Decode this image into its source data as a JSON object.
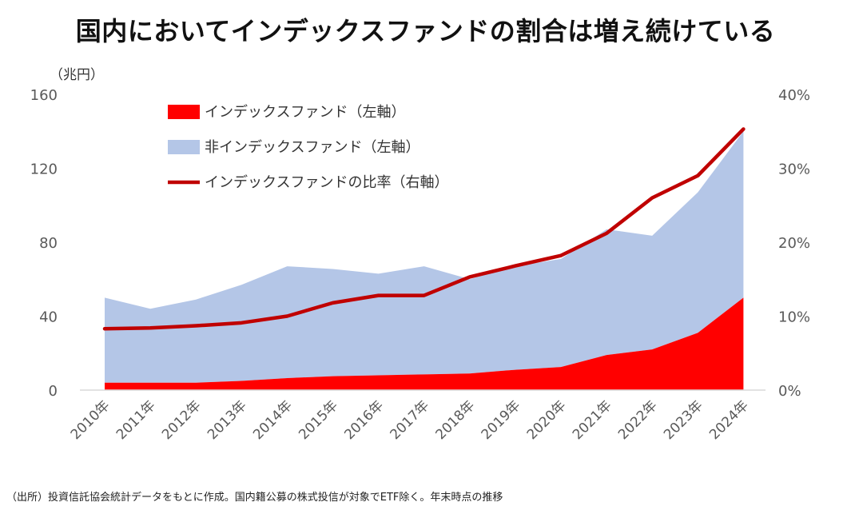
{
  "title": "国内においてインデックスファンドの割合は増え続けている",
  "source_note": "（出所）投資信託協会統計データをもとに作成。国内籍公募の株式投信が対象でETF除く。年末時点の推移",
  "colors": {
    "index_fund": "#ff0000",
    "non_index_fund": "#b4c6e7",
    "ratio_line": "#c00000",
    "axis_text": "#595959",
    "baseline": "#d9d9d9"
  },
  "chart_data": {
    "type": "area",
    "title": "国内においてインデックスファンドの割合は増え続けている",
    "left_axis_unit": "（兆円）",
    "categories": [
      "2010年",
      "2011年",
      "2012年",
      "2013年",
      "2014年",
      "2015年",
      "2016年",
      "2017年",
      "2018年",
      "2019年",
      "2020年",
      "2021年",
      "2022年",
      "2023年",
      "2024年"
    ],
    "left_ylim": [
      0,
      160
    ],
    "left_yticks": [
      "0",
      "40",
      "80",
      "120",
      "160"
    ],
    "right_ylim": [
      0,
      0.4
    ],
    "right_yticks": [
      "0%",
      "10%",
      "20%",
      "30%",
      "40%"
    ],
    "grid": false,
    "legend_position": "top-left",
    "series": [
      {
        "name": "インデックスファンド（左軸）",
        "type": "area",
        "axis": "left",
        "stacked": true,
        "values": [
          4,
          4,
          4,
          5,
          6.5,
          7.5,
          8,
          8.5,
          9,
          11,
          12.5,
          19,
          22,
          31,
          50
        ]
      },
      {
        "name": "非インデックスファンド（左軸）",
        "type": "area",
        "axis": "left",
        "stacked": true,
        "values": [
          46,
          40,
          45,
          52,
          60.5,
          58,
          55,
          58.5,
          51,
          56,
          58.5,
          68,
          61.5,
          76,
          90
        ]
      },
      {
        "name": "インデックスファンドの比率（右軸）",
        "type": "line",
        "axis": "right",
        "values": [
          0.083,
          0.084,
          0.087,
          0.091,
          0.1,
          0.118,
          0.128,
          0.128,
          0.153,
          0.168,
          0.182,
          0.212,
          0.26,
          0.29,
          0.353
        ]
      }
    ]
  }
}
